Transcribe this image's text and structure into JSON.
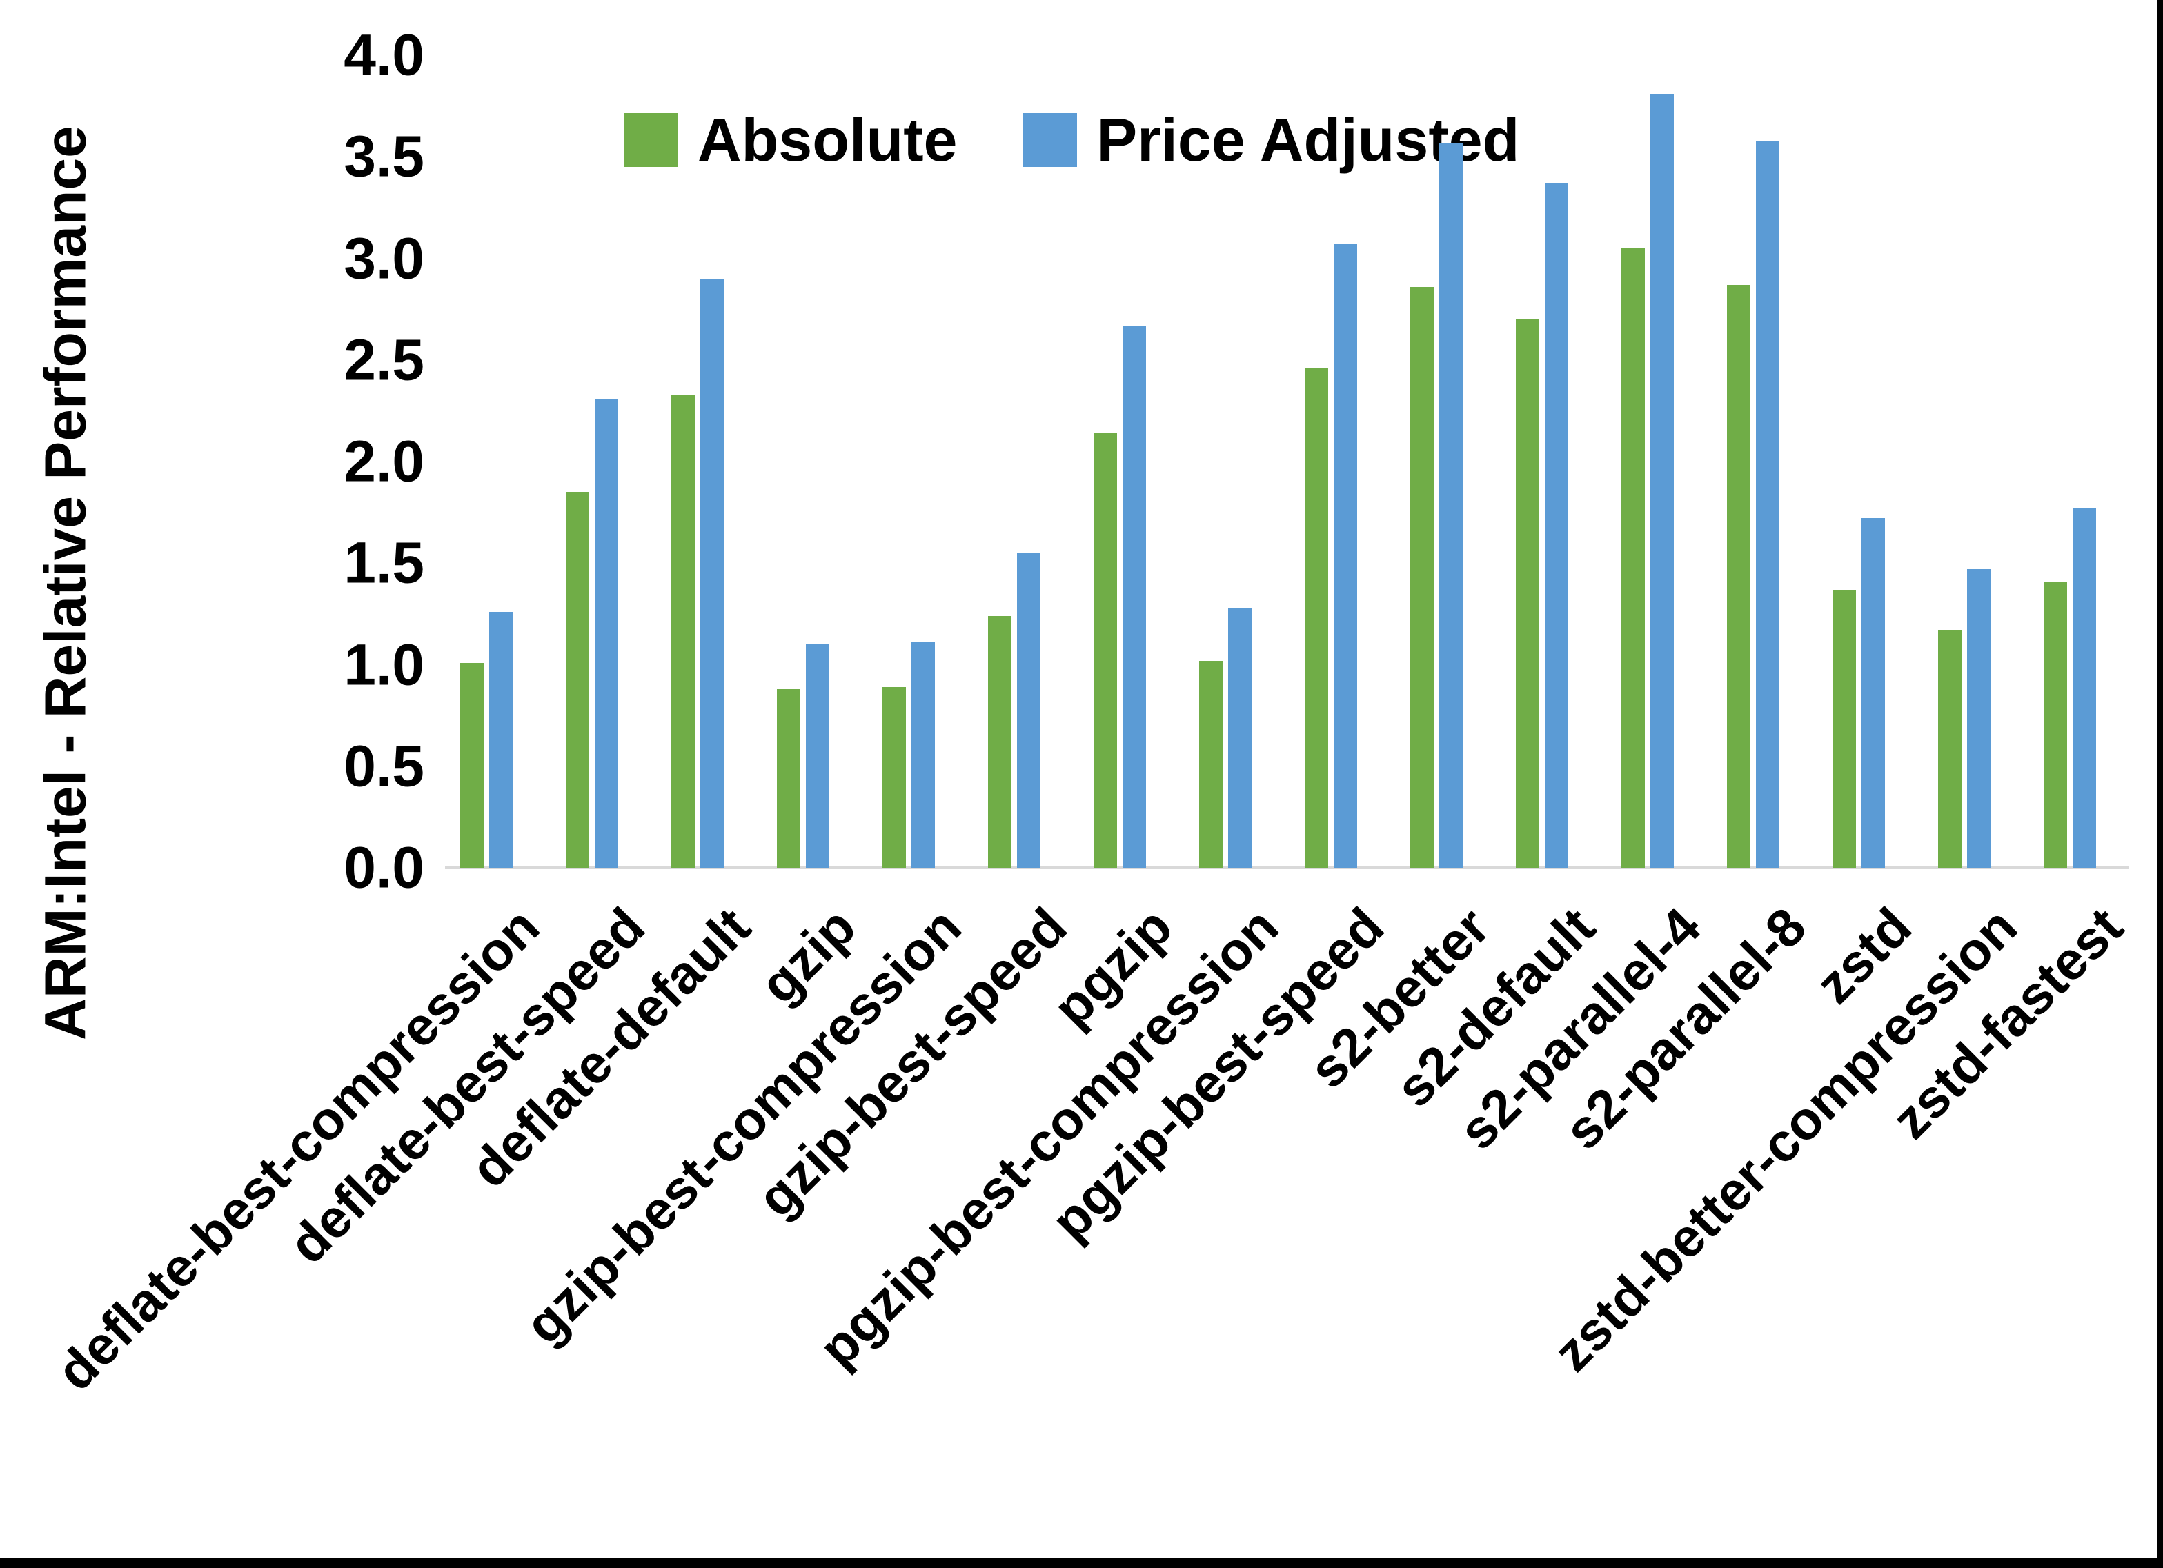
{
  "figure": {
    "background": "#ffffff",
    "border_color": "#000000"
  },
  "chart_data": {
    "type": "bar",
    "title": "",
    "ylabel": "ARM:Intel - Relative Performance",
    "xlabel": "",
    "ylim": [
      0.0,
      4.0
    ],
    "ytick_labels": [
      "0.0",
      "0.5",
      "1.0",
      "1.5",
      "2.0",
      "2.5",
      "3.0",
      "3.5",
      "4.0"
    ],
    "grid": false,
    "legend_position": "top",
    "axis_line_color": "#d9d9d9",
    "text_color": "#000000",
    "categories": [
      "deflate-best-compression",
      "deflate-best-speed",
      "deflate-default",
      "gzip",
      "gzip-best-compression",
      "gzip-best-speed",
      "pgzip",
      "pgzip-best-compression",
      "pgzip-best-speed",
      "s2-better",
      "s2-default",
      "s2-parallel-4",
      "s2-parallel-8",
      "zstd",
      "zstd-better-compression",
      "zstd-fastest"
    ],
    "series": [
      {
        "name": "Absolute",
        "color": "#70AD47",
        "values": [
          1.01,
          1.85,
          2.33,
          0.88,
          0.89,
          1.24,
          2.14,
          1.02,
          2.46,
          2.86,
          2.7,
          3.05,
          2.87,
          1.37,
          1.17,
          1.41
        ]
      },
      {
        "name": "Price Adjusted",
        "color": "#5B9BD5",
        "values": [
          1.26,
          2.31,
          2.9,
          1.1,
          1.11,
          1.55,
          2.67,
          1.28,
          3.07,
          3.57,
          3.37,
          3.81,
          3.58,
          1.72,
          1.47,
          1.77
        ]
      }
    ]
  }
}
